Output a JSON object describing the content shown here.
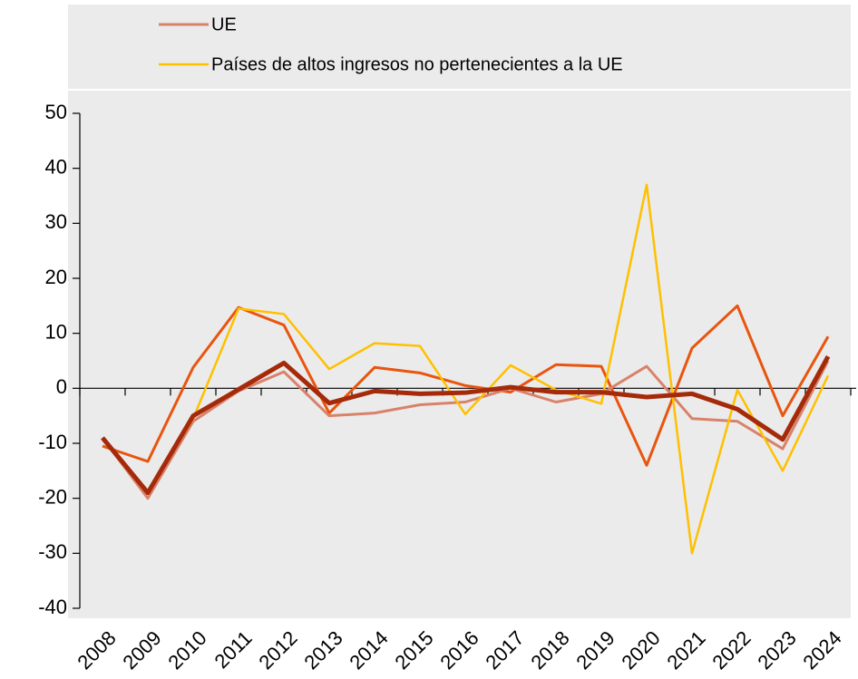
{
  "chart_data": {
    "type": "line",
    "categories": [
      "2008",
      "2009",
      "2010",
      "2011",
      "2012",
      "2013",
      "2014",
      "2015",
      "2016",
      "2017",
      "2018",
      "2019",
      "2020",
      "2021",
      "2022",
      "2023",
      "2024"
    ],
    "series": [
      {
        "color": "#e8550e",
        "width": 3,
        "values": [
          -10.5,
          -13.3,
          3.8,
          14.7,
          11.5,
          -4.5,
          3.8,
          2.8,
          0.5,
          -0.7,
          4.3,
          4,
          -14,
          7.3,
          15,
          -5,
          9.4
        ]
      },
      {
        "name": "UE",
        "color": "#d9826a",
        "width": 3,
        "values": [
          -9,
          -20,
          -6,
          -0.5,
          3,
          -5,
          -4.5,
          -3,
          -2.5,
          0,
          -2.5,
          -1,
          4,
          -5.5,
          -6,
          -11,
          5
        ]
      },
      {
        "name": "Países de altos ingresos no pertenecientes a la UE",
        "color": "#ffc000",
        "width": 2.5,
        "values": [
          -9,
          -19,
          -5.5,
          14.5,
          13.5,
          3.5,
          8.2,
          7.7,
          -4.7,
          4.2,
          -0.3,
          -2.8,
          37,
          -30,
          -0.3,
          -15,
          2.3
        ]
      },
      {
        "color": "#a52a0a",
        "width": 5,
        "values": [
          -9,
          -19,
          -5,
          -0.2,
          4.6,
          -2.7,
          -0.5,
          -1,
          -0.8,
          0.2,
          -0.7,
          -0.7,
          -1.6,
          -1,
          -3.8,
          -9.3,
          5.8
        ]
      }
    ],
    "ylim": [
      -40,
      50
    ],
    "yticks": [
      -40,
      -30,
      -20,
      -10,
      0,
      10,
      20,
      30,
      40,
      50
    ]
  }
}
